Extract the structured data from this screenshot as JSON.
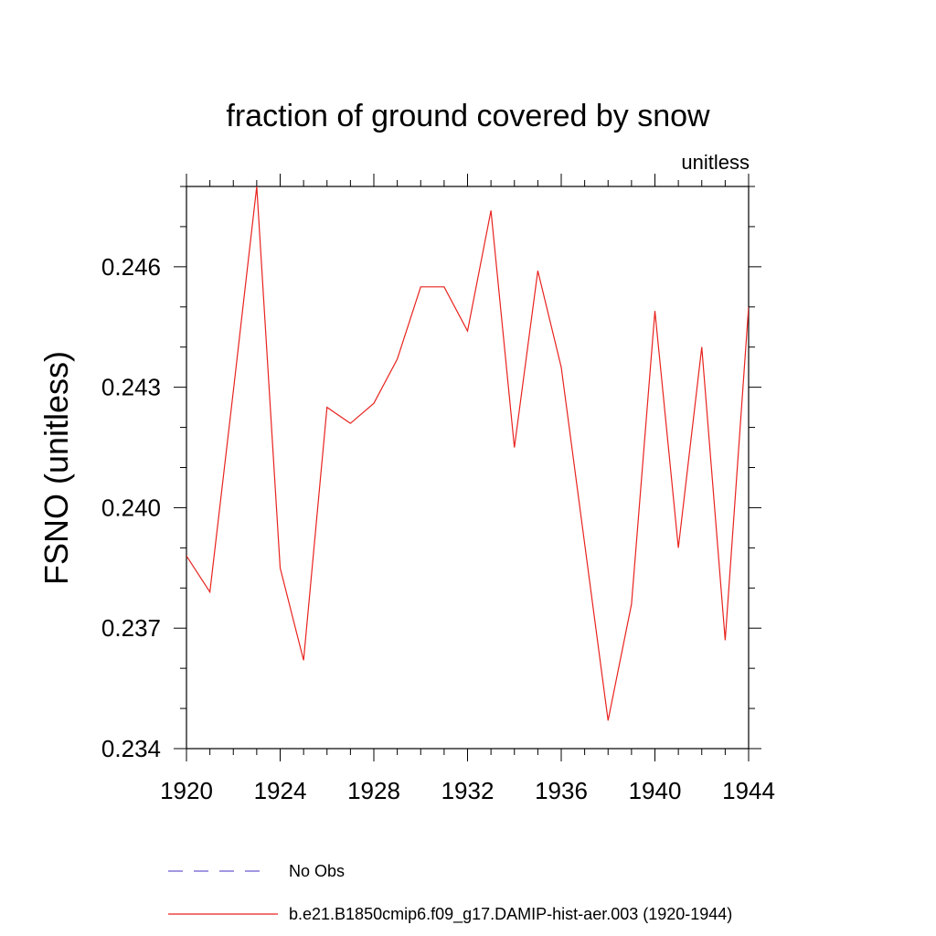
{
  "chart_data": {
    "type": "line",
    "title": "fraction of ground covered by snow",
    "units_label": "unitless",
    "xlabel": "",
    "ylabel": "FSNO  (unitless)",
    "xlim": [
      1920,
      1944
    ],
    "ylim": [
      0.234,
      0.248
    ],
    "x_ticks": [
      1920,
      1924,
      1928,
      1932,
      1936,
      1940,
      1944
    ],
    "y_ticks": [
      "0.234",
      "0.237",
      "0.240",
      "0.243",
      "0.246"
    ],
    "grid": false,
    "legend_placement": "bottom",
    "legend": [
      {
        "label": "No Obs",
        "color": "#6a5acd",
        "style": "dashed"
      },
      {
        "label": "b.e21.B1850cmip6.f09_g17.DAMIP-hist-aer.003 (1920-1944)",
        "color": "#e8231e",
        "style": "solid"
      }
    ],
    "series": [
      {
        "name": "b.e21.B1850cmip6.f09_g17.DAMIP-hist-aer.003 (1920-1944)",
        "color": "#e8231e",
        "x": [
          1920,
          1921,
          1922,
          1923,
          1924,
          1925,
          1926,
          1927,
          1928,
          1929,
          1930,
          1931,
          1932,
          1933,
          1934,
          1935,
          1936,
          1937,
          1938,
          1939,
          1940,
          1941,
          1942,
          1943,
          1944
        ],
        "values": [
          0.2388,
          0.2379,
          0.2429,
          0.248,
          0.2385,
          0.2362,
          0.2425,
          0.2421,
          0.2426,
          0.2437,
          0.2455,
          0.2455,
          0.2444,
          0.2474,
          0.2415,
          0.2459,
          0.2435,
          0.2391,
          0.2347,
          0.2376,
          0.2449,
          0.239,
          0.244,
          0.2367,
          0.245
        ]
      }
    ]
  }
}
